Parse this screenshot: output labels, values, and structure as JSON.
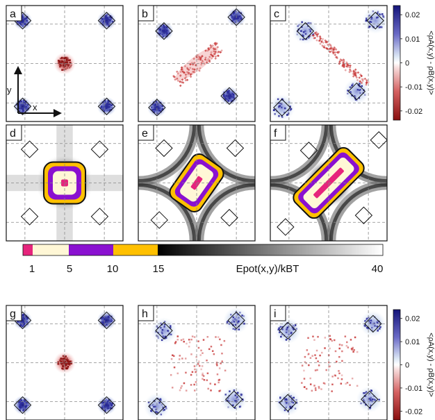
{
  "panels": [
    {
      "id": "a",
      "type": "density",
      "points": [
        [
          0.14,
          0.13
        ],
        [
          0.86,
          0.13
        ],
        [
          0.14,
          0.87
        ],
        [
          0.86,
          0.87
        ]
      ],
      "center": "blob"
    },
    {
      "id": "b",
      "type": "density",
      "points": [
        [
          0.22,
          0.22
        ],
        [
          0.84,
          0.1
        ],
        [
          0.16,
          0.88
        ],
        [
          0.78,
          0.78
        ]
      ],
      "center": "diag"
    },
    {
      "id": "c",
      "type": "density",
      "points": [
        [
          0.3,
          0.22
        ],
        [
          0.9,
          0.13
        ],
        [
          0.1,
          0.88
        ],
        [
          0.74,
          0.74
        ]
      ],
      "center": "two"
    },
    {
      "id": "d",
      "type": "potential",
      "points": [
        [
          0.2,
          0.21
        ],
        [
          0.8,
          0.21
        ],
        [
          0.2,
          0.79
        ],
        [
          0.8,
          0.79
        ]
      ],
      "shape": "square"
    },
    {
      "id": "e",
      "type": "potential",
      "points": [
        [
          0.22,
          0.2
        ],
        [
          0.83,
          0.2
        ],
        [
          0.18,
          0.82
        ],
        [
          0.78,
          0.8
        ]
      ],
      "shape": "rect"
    },
    {
      "id": "f",
      "type": "potential",
      "points": [
        [
          0.33,
          0.22
        ],
        [
          0.93,
          0.13
        ],
        [
          0.13,
          0.88
        ],
        [
          0.8,
          0.78
        ]
      ],
      "shape": "long"
    },
    {
      "id": "g",
      "type": "density",
      "points": [
        [
          0.14,
          0.13
        ],
        [
          0.86,
          0.13
        ],
        [
          0.14,
          0.87
        ],
        [
          0.86,
          0.87
        ]
      ],
      "center": "blob"
    },
    {
      "id": "h",
      "type": "density",
      "points": [
        [
          0.22,
          0.22
        ],
        [
          0.84,
          0.13
        ],
        [
          0.16,
          0.88
        ],
        [
          0.82,
          0.82
        ]
      ],
      "center": "scatter"
    },
    {
      "id": "i",
      "type": "density",
      "points": [
        [
          0.15,
          0.22
        ],
        [
          0.88,
          0.16
        ],
        [
          0.15,
          0.85
        ],
        [
          0.85,
          0.82
        ]
      ],
      "center": "scatter"
    }
  ],
  "axis_labels": {
    "x": "x",
    "y": "y"
  },
  "density_colorbar": {
    "label": "<ρA(x,y) - ρB(x,y)>",
    "ticks": [
      "0.02",
      "0.01",
      "0",
      "-0.01",
      "-0.02"
    ],
    "colors": {
      "high": "#1c1c8c",
      "mid": "#ffffff",
      "low": "#9e1a1a"
    }
  },
  "energy_colorbar": {
    "label": "Epot(x,y)/kBT",
    "ticks": [
      "1",
      "5",
      "10",
      "15",
      "40"
    ],
    "segments": [
      {
        "color": "#e6247c"
      },
      {
        "color": "#fff7d6"
      },
      {
        "color": "#8a10d0"
      },
      {
        "color": "#ffc000"
      }
    ]
  }
}
